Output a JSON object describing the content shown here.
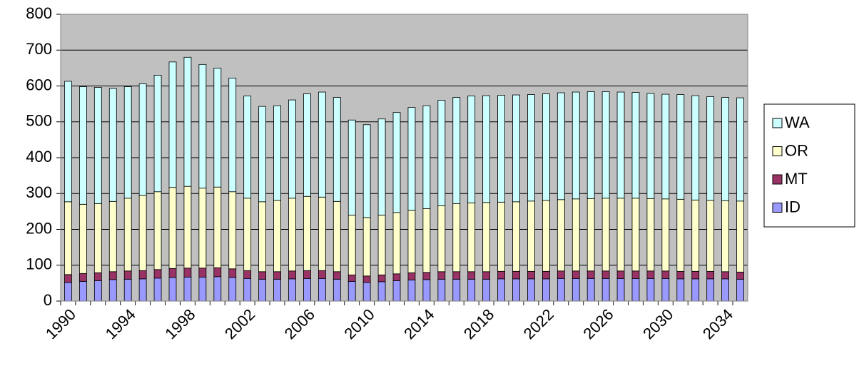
{
  "chart_data": {
    "type": "stacked_bar",
    "categories": [
      "1990",
      null,
      null,
      null,
      "1994",
      null,
      null,
      null,
      "1998",
      null,
      null,
      null,
      "2002",
      null,
      null,
      null,
      "2006",
      null,
      null,
      null,
      "2010",
      null,
      null,
      null,
      "2014",
      null,
      null,
      null,
      "2018",
      null,
      null,
      null,
      "2022",
      null,
      null,
      null,
      "2026",
      null,
      null,
      null,
      "2030",
      null,
      null,
      null,
      "2034",
      null
    ],
    "series": [
      {
        "name": "ID",
        "color": "#9999ff",
        "values": [
          52,
          55,
          57,
          60,
          61,
          62,
          64,
          66,
          67,
          67,
          68,
          66,
          63,
          61,
          61,
          62,
          63,
          63,
          61,
          55,
          52,
          54,
          57,
          59,
          60,
          61,
          61,
          61,
          61,
          62,
          62,
          62,
          62,
          63,
          63,
          63,
          63,
          63,
          63,
          63,
          63,
          62,
          62,
          62,
          62,
          61
        ]
      },
      {
        "name": "MT",
        "color": "#993366",
        "values": [
          22,
          22,
          22,
          22,
          23,
          23,
          24,
          25,
          25,
          25,
          25,
          24,
          22,
          21,
          21,
          22,
          22,
          22,
          21,
          18,
          18,
          19,
          19,
          20,
          20,
          21,
          21,
          21,
          21,
          21,
          21,
          21,
          21,
          21,
          21,
          21,
          21,
          21,
          21,
          21,
          21,
          21,
          21,
          21,
          20,
          20
        ]
      },
      {
        "name": "OR",
        "color": "#ffffcc",
        "values": [
          203,
          193,
          193,
          196,
          203,
          210,
          217,
          226,
          228,
          223,
          225,
          215,
          202,
          195,
          199,
          203,
          207,
          205,
          196,
          167,
          163,
          167,
          171,
          174,
          178,
          184,
          190,
          192,
          193,
          193,
          194,
          196,
          198,
          199,
          201,
          202,
          203,
          203,
          203,
          202,
          201,
          201,
          199,
          198,
          198,
          198
        ]
      },
      {
        "name": "WA",
        "color": "#ccffff",
        "values": [
          336,
          328,
          324,
          315,
          311,
          311,
          325,
          350,
          360,
          345,
          332,
          317,
          285,
          266,
          264,
          274,
          286,
          293,
          290,
          265,
          259,
          268,
          279,
          287,
          287,
          294,
          296,
          298,
          298,
          298,
          298,
          297,
          297,
          298,
          298,
          298,
          297,
          296,
          295,
          293,
          292,
          292,
          291,
          289,
          288,
          288
        ]
      }
    ],
    "ylim": [
      0,
      800
    ],
    "yticks": [
      0,
      100,
      200,
      300,
      400,
      500,
      600,
      700,
      800
    ],
    "grid": true,
    "plot_background": "#c0c0c0",
    "legend": "right"
  }
}
